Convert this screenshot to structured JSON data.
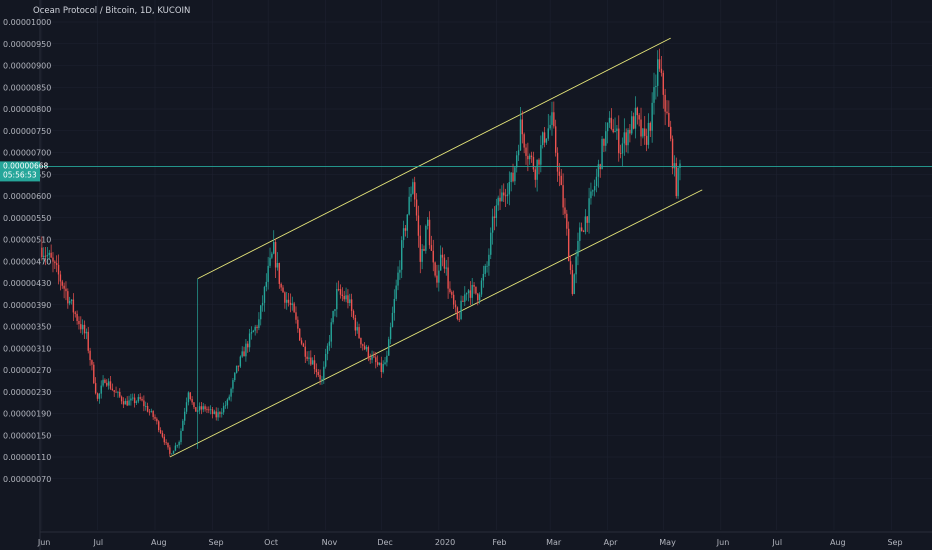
{
  "header": {
    "title": "Ocean Protocol / Bitcoin, 1D, KUCOIN"
  },
  "price_badge": {
    "price": "0.00000668",
    "countdown": "05:56:53"
  },
  "colors": {
    "up": "#26a69a",
    "down": "#ef5350",
    "channel": "#e6e67a",
    "price_line": "#26a69a",
    "background": "#131722",
    "grid": "#1e2230"
  },
  "chart_data": {
    "type": "candlestick",
    "title": "Ocean Protocol / Bitcoin, 1D, KUCOIN",
    "xlabel": "",
    "ylabel": "",
    "y_tick_labels": [
      "0.00001000",
      "0.00000950",
      "0.00000900",
      "0.00000850",
      "0.00000800",
      "0.00000750",
      "0.00000700",
      "0.00000650",
      "0.00000600",
      "0.00000550",
      "0.00000510",
      "0.00000470",
      "0.00000430",
      "0.00000390",
      "0.00000350",
      "0.00000310",
      "0.00000270",
      "0.00000230",
      "0.00000190",
      "0.00000150",
      "0.00000110",
      "0.00000070"
    ],
    "y_ticks": [
      1000,
      950,
      900,
      850,
      800,
      750,
      700,
      650,
      600,
      550,
      510,
      470,
      430,
      390,
      350,
      310,
      270,
      230,
      190,
      150,
      110,
      70
    ],
    "y_unit": "1e-8 BTC (satoshi)",
    "x_tick_labels": [
      "Jun",
      "Jul",
      "Aug",
      "Sep",
      "Oct",
      "Nov",
      "Dec",
      "2020",
      "Feb",
      "Mar",
      "Apr",
      "May",
      "Jun",
      "Jul",
      "Aug",
      "Sep"
    ],
    "x_ticks": [
      "2019-06-01",
      "2019-07-01",
      "2019-08-01",
      "2019-09-01",
      "2019-10-01",
      "2019-11-01",
      "2019-12-01",
      "2020-01-01",
      "2020-02-01",
      "2020-03-01",
      "2020-04-01",
      "2020-05-01",
      "2020-06-01",
      "2020-07-01",
      "2020-08-01",
      "2020-09-01"
    ],
    "x_range": [
      "2019-05-31",
      "2020-09-28"
    ],
    "anchors": [
      {
        "date": "2019-06-01",
        "close": 495
      },
      {
        "date": "2019-06-06",
        "close": 470
      },
      {
        "date": "2019-06-12",
        "close": 430
      },
      {
        "date": "2019-06-18",
        "close": 380
      },
      {
        "date": "2019-06-25",
        "close": 330
      },
      {
        "date": "2019-07-01",
        "close": 215
      },
      {
        "date": "2019-07-05",
        "close": 255
      },
      {
        "date": "2019-07-10",
        "close": 230
      },
      {
        "date": "2019-07-16",
        "close": 210
      },
      {
        "date": "2019-07-24",
        "close": 215
      },
      {
        "date": "2019-08-01",
        "close": 180
      },
      {
        "date": "2019-08-05",
        "close": 150
      },
      {
        "date": "2019-08-09",
        "close": 115
      },
      {
        "date": "2019-08-14",
        "close": 140
      },
      {
        "date": "2019-08-19",
        "close": 235
      },
      {
        "date": "2019-08-22",
        "close": 195
      },
      {
        "date": "2019-08-28",
        "close": 200
      },
      {
        "date": "2019-09-03",
        "close": 185
      },
      {
        "date": "2019-09-09",
        "close": 210
      },
      {
        "date": "2019-09-14",
        "close": 270
      },
      {
        "date": "2019-09-20",
        "close": 320
      },
      {
        "date": "2019-09-26",
        "close": 360
      },
      {
        "date": "2019-10-01",
        "close": 450
      },
      {
        "date": "2019-10-04",
        "close": 490
      },
      {
        "date": "2019-10-08",
        "close": 420
      },
      {
        "date": "2019-10-14",
        "close": 380
      },
      {
        "date": "2019-10-20",
        "close": 310
      },
      {
        "date": "2019-10-25",
        "close": 285
      },
      {
        "date": "2019-10-30",
        "close": 250
      },
      {
        "date": "2019-11-03",
        "close": 330
      },
      {
        "date": "2019-11-07",
        "close": 410
      },
      {
        "date": "2019-11-13",
        "close": 400
      },
      {
        "date": "2019-11-18",
        "close": 340
      },
      {
        "date": "2019-11-22",
        "close": 310
      },
      {
        "date": "2019-11-26",
        "close": 290
      },
      {
        "date": "2019-12-01",
        "close": 270
      },
      {
        "date": "2019-12-04",
        "close": 290
      },
      {
        "date": "2019-12-07",
        "close": 370
      },
      {
        "date": "2019-12-11",
        "close": 470
      },
      {
        "date": "2019-12-15",
        "close": 560
      },
      {
        "date": "2019-12-18",
        "close": 640
      },
      {
        "date": "2019-12-22",
        "close": 470
      },
      {
        "date": "2019-12-26",
        "close": 540
      },
      {
        "date": "2019-12-30",
        "close": 430
      },
      {
        "date": "2020-01-03",
        "close": 490
      },
      {
        "date": "2020-01-07",
        "close": 410
      },
      {
        "date": "2020-01-11",
        "close": 360
      },
      {
        "date": "2020-01-16",
        "close": 420
      },
      {
        "date": "2020-01-22",
        "close": 410
      },
      {
        "date": "2020-01-27",
        "close": 460
      },
      {
        "date": "2020-01-31",
        "close": 560
      },
      {
        "date": "2020-02-06",
        "close": 620
      },
      {
        "date": "2020-02-10",
        "close": 640
      },
      {
        "date": "2020-02-14",
        "close": 760
      },
      {
        "date": "2020-02-18",
        "close": 700
      },
      {
        "date": "2020-02-22",
        "close": 660
      },
      {
        "date": "2020-02-27",
        "close": 740
      },
      {
        "date": "2020-03-02",
        "close": 770
      },
      {
        "date": "2020-03-06",
        "close": 640
      },
      {
        "date": "2020-03-10",
        "close": 520
      },
      {
        "date": "2020-03-13",
        "close": 420
      },
      {
        "date": "2020-03-17",
        "close": 520
      },
      {
        "date": "2020-03-21",
        "close": 560
      },
      {
        "date": "2020-03-26",
        "close": 640
      },
      {
        "date": "2020-03-30",
        "close": 730
      },
      {
        "date": "2020-04-03",
        "close": 770
      },
      {
        "date": "2020-04-08",
        "close": 710
      },
      {
        "date": "2020-04-12",
        "close": 750
      },
      {
        "date": "2020-04-16",
        "close": 780
      },
      {
        "date": "2020-04-21",
        "close": 720
      },
      {
        "date": "2020-04-25",
        "close": 790
      },
      {
        "date": "2020-04-28",
        "close": 900
      },
      {
        "date": "2020-05-01",
        "close": 840
      },
      {
        "date": "2020-05-05",
        "close": 720
      },
      {
        "date": "2020-05-08",
        "close": 620
      },
      {
        "date": "2020-05-10",
        "close": 668
      }
    ],
    "channel": {
      "upper": [
        {
          "date": "2019-08-24",
          "value": 438
        },
        {
          "date": "2020-05-05",
          "value": 963
        }
      ],
      "lower": [
        {
          "date": "2019-08-09",
          "value": 110
        },
        {
          "date": "2020-05-22",
          "value": 614
        }
      ],
      "connector": [
        {
          "date": "2019-08-24",
          "value": 438
        },
        {
          "date": "2019-08-24",
          "value": 125
        }
      ]
    },
    "current_price": 668,
    "grid": false
  }
}
